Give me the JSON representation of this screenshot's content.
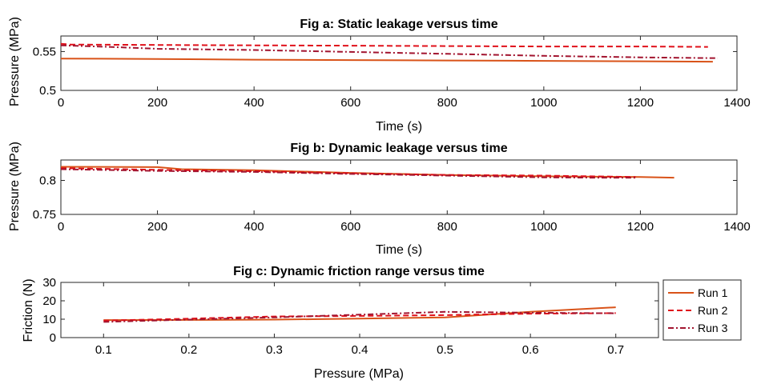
{
  "colors": {
    "run1": "#D95319",
    "run2": "#E0101A",
    "run3": "#A2142F"
  },
  "legend": {
    "entries": [
      "Run 1",
      "Run 2",
      "Run 3"
    ]
  },
  "chart_data": [
    {
      "type": "line",
      "title": "Fig a: Static leakage versus time",
      "xlabel": "Time (s)",
      "ylabel": "Pressure (MPa)",
      "xlim": [
        0,
        1400
      ],
      "ylim": [
        0.5,
        0.57
      ],
      "xticks": [
        0,
        200,
        400,
        600,
        800,
        1000,
        1200,
        1400
      ],
      "yticks": [
        0.5,
        0.55
      ],
      "ytick_labels": [
        "0.5",
        "0.55"
      ],
      "grid": false,
      "series": [
        {
          "name": "Run 1",
          "x": [
            0,
            200,
            400,
            600,
            800,
            1000,
            1200,
            1350
          ],
          "y": [
            0.541,
            0.5405,
            0.5395,
            0.539,
            0.5385,
            0.538,
            0.5375,
            0.537
          ]
        },
        {
          "name": "Run 2",
          "x": [
            0,
            20,
            200,
            400,
            600,
            800,
            1000,
            1200,
            1340
          ],
          "y": [
            0.56,
            0.559,
            0.5585,
            0.558,
            0.5575,
            0.557,
            0.5565,
            0.5565,
            0.556
          ]
        },
        {
          "name": "Run 3",
          "x": [
            0,
            100,
            200,
            400,
            600,
            800,
            1000,
            1200,
            1360
          ],
          "y": [
            0.558,
            0.556,
            0.5535,
            0.552,
            0.5495,
            0.547,
            0.5445,
            0.5425,
            0.5415
          ]
        }
      ]
    },
    {
      "type": "line",
      "title": "Fig b: Dynamic leakage versus time",
      "xlabel": "Time (s)",
      "ylabel": "Pressure (MPa)",
      "xlim": [
        0,
        1400
      ],
      "ylim": [
        0.75,
        0.83
      ],
      "xticks": [
        0,
        200,
        400,
        600,
        800,
        1000,
        1200,
        1400
      ],
      "yticks": [
        0.75,
        0.8
      ],
      "ytick_labels": [
        "0.75",
        "0.8"
      ],
      "grid": false,
      "series": [
        {
          "name": "Run 1",
          "x": [
            0,
            200,
            250,
            400,
            600,
            800,
            1000,
            1200,
            1270
          ],
          "y": [
            0.82,
            0.8195,
            0.8165,
            0.815,
            0.811,
            0.808,
            0.806,
            0.805,
            0.804
          ]
        },
        {
          "name": "Run 2",
          "x": [
            0,
            200,
            400,
            600,
            800,
            1000,
            1100,
            1190
          ],
          "y": [
            0.818,
            0.8155,
            0.8135,
            0.8105,
            0.808,
            0.807,
            0.806,
            0.805
          ]
        },
        {
          "name": "Run 3",
          "x": [
            0,
            200,
            400,
            600,
            800,
            1000,
            1100,
            1190
          ],
          "y": [
            0.8165,
            0.814,
            0.8125,
            0.8095,
            0.807,
            0.8045,
            0.804,
            0.804
          ]
        }
      ]
    },
    {
      "type": "line",
      "title": "Fig c: Dynamic friction range versus time",
      "xlabel": "Pressure (MPa)",
      "ylabel": "Friction (N)",
      "xlim": [
        0.05,
        0.75
      ],
      "ylim": [
        0,
        30
      ],
      "xticks": [
        0.1,
        0.2,
        0.3,
        0.4,
        0.5,
        0.6,
        0.7
      ],
      "yticks": [
        0,
        10,
        20,
        30
      ],
      "ytick_labels": [
        "0",
        "10",
        "20",
        "30"
      ],
      "grid": false,
      "legend_position": "outside-right",
      "series": [
        {
          "name": "Run 1",
          "x": [
            0.1,
            0.2,
            0.3,
            0.4,
            0.5,
            0.6,
            0.7
          ],
          "y": [
            9.5,
            9.6,
            9.8,
            10.3,
            11,
            14,
            16.5
          ]
        },
        {
          "name": "Run 2",
          "x": [
            0.1,
            0.2,
            0.3,
            0.4,
            0.5,
            0.6,
            0.7
          ],
          "y": [
            9.2,
            10.3,
            11.5,
            11.8,
            12.2,
            13,
            13.3
          ]
        },
        {
          "name": "Run 3",
          "x": [
            0.1,
            0.2,
            0.3,
            0.4,
            0.5,
            0.6,
            0.7
          ],
          "y": [
            8.5,
            9.8,
            11,
            12.5,
            14,
            13.5,
            13.2
          ]
        }
      ]
    }
  ]
}
